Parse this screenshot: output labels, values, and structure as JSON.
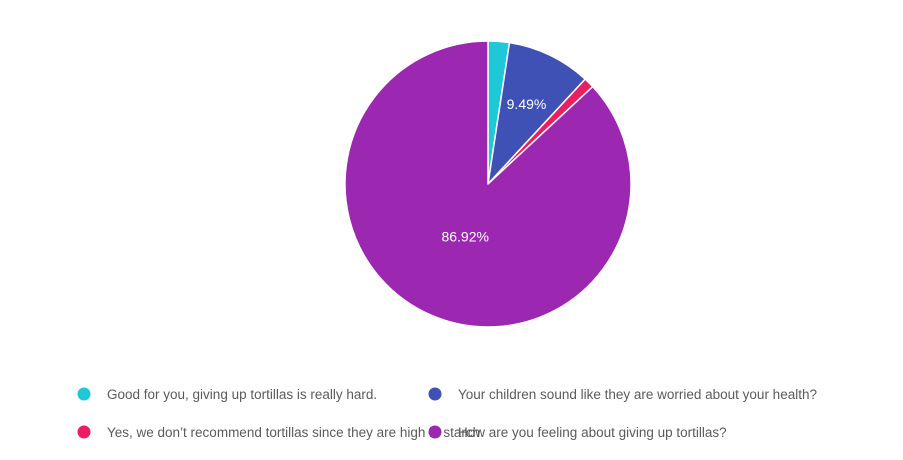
{
  "chart_data": {
    "type": "pie",
    "slices": [
      {
        "name": "Good for you, giving up tortillas is really hard.",
        "value": 2.4,
        "label": "",
        "color": "#1ec8d8"
      },
      {
        "name": "Your children sound like they are worried about your health?",
        "value": 9.49,
        "label": "9.49%",
        "color": "#3f51b5"
      },
      {
        "name": "Yes, we don’t recommend tortillas since they are high in starch.",
        "value": 1.19,
        "label": "",
        "color": "#e91e63"
      },
      {
        "name": "How are you feeling about giving up tortillas?",
        "value": 86.92,
        "label": "86.92%",
        "color": "#9c27b0"
      }
    ],
    "legend": {
      "placement": "bottom",
      "order": [
        0,
        1,
        2,
        3
      ]
    }
  }
}
